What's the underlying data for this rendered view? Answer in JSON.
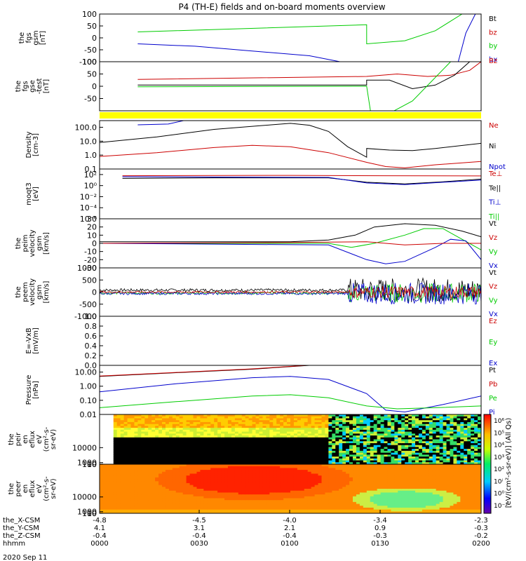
{
  "title": "P4 (TH-E) fields and on-board moments overview",
  "colors": {
    "black": "#000000",
    "red": "#cc0000",
    "green": "#00cc00",
    "blue": "#0000cc",
    "yellow": "#ffff00"
  },
  "chart_data": [
    {
      "type": "line",
      "panel": "fgs gsm",
      "ylabel": [
        "the",
        "fgs",
        "gsm",
        "[nT]"
      ],
      "ylim": [
        -100,
        100
      ],
      "yticks": [
        "100",
        "50",
        "0",
        "-50",
        "-100"
      ],
      "yticks_v": [
        100,
        50,
        0,
        -50,
        -100
      ],
      "legend": [
        {
          "text": "Bt",
          "color": "black"
        },
        {
          "text": "bz",
          "color": "red"
        },
        {
          "text": "by",
          "color": "green"
        },
        {
          "text": "bx",
          "color": "blue"
        }
      ],
      "legend_overlap": "Bz",
      "series": [
        {
          "color": "green",
          "points": [
            [
              0.1,
              25
            ],
            [
              0.7,
              55
            ],
            [
              0.7,
              -25
            ],
            [
              0.8,
              -12
            ],
            [
              0.88,
              30
            ],
            [
              0.95,
              100
            ]
          ]
        },
        {
          "color": "blue",
          "points": [
            [
              0.1,
              -25
            ],
            [
              0.25,
              -35
            ],
            [
              0.4,
              -55
            ],
            [
              0.55,
              -75
            ],
            [
              0.63,
              -100
            ]
          ]
        },
        {
          "color": "blue",
          "points": [
            [
              0.94,
              -100
            ],
            [
              0.96,
              20
            ],
            [
              0.985,
              100
            ]
          ]
        }
      ]
    },
    {
      "type": "line",
      "panel": "fgs gse",
      "ylabel": [
        "the",
        "fgs",
        "gse",
        "-test",
        "[nT]"
      ],
      "ylim": [
        -100,
        100
      ],
      "yticks": [
        "100",
        "50",
        "0",
        "-50"
      ],
      "yticks_v": [
        100,
        50,
        0,
        -50
      ],
      "series": [
        {
          "color": "red",
          "points": [
            [
              0.1,
              28
            ],
            [
              0.7,
              40
            ],
            [
              0.78,
              50
            ],
            [
              0.86,
              40
            ],
            [
              0.92,
              45
            ],
            [
              0.97,
              65
            ],
            [
              1.0,
              100
            ]
          ]
        },
        {
          "color": "black",
          "points": [
            [
              0.1,
              5
            ],
            [
              0.7,
              5
            ],
            [
              0.7,
              25
            ],
            [
              0.76,
              25
            ],
            [
              0.82,
              -10
            ],
            [
              0.88,
              5
            ],
            [
              0.93,
              45
            ],
            [
              0.97,
              100
            ]
          ]
        },
        {
          "color": "green",
          "points": [
            [
              0.1,
              -2
            ],
            [
              0.7,
              0
            ],
            [
              0.71,
              -100
            ],
            [
              0.76,
              -110
            ],
            [
              0.82,
              -60
            ],
            [
              0.87,
              20
            ],
            [
              0.92,
              100
            ]
          ]
        }
      ]
    },
    {
      "type": "line",
      "panel": "density",
      "ylabel": [
        "Density",
        "[cm-3]"
      ],
      "ylim": [
        0.1,
        300
      ],
      "log": true,
      "yticks": [
        "100.0",
        "10.0",
        "1.0",
        "0.1"
      ],
      "yticks_v": [
        100,
        10,
        1,
        0.1
      ],
      "legend": [
        {
          "text": "Ne",
          "color": "red"
        },
        {
          "text": "Ni",
          "color": "black"
        },
        {
          "text": "Npot",
          "color": "blue"
        }
      ],
      "series": [
        {
          "color": "black",
          "points": [
            [
              0.0,
              8
            ],
            [
              0.15,
              20
            ],
            [
              0.3,
              70
            ],
            [
              0.45,
              150
            ],
            [
              0.5,
              190
            ],
            [
              0.55,
              140
            ],
            [
              0.6,
              50
            ],
            [
              0.65,
              4
            ],
            [
              0.7,
              0.7
            ],
            [
              0.7,
              3
            ],
            [
              0.76,
              2.3
            ],
            [
              0.82,
              2.1
            ],
            [
              0.88,
              3
            ],
            [
              1.0,
              7
            ]
          ]
        },
        {
          "color": "red",
          "points": [
            [
              0.0,
              0.8
            ],
            [
              0.15,
              1.5
            ],
            [
              0.3,
              3.5
            ],
            [
              0.4,
              5
            ],
            [
              0.5,
              4
            ],
            [
              0.6,
              1.5
            ],
            [
              0.7,
              0.3
            ],
            [
              0.75,
              0.15
            ],
            [
              0.8,
              0.12
            ],
            [
              0.88,
              0.2
            ],
            [
              1.0,
              0.35
            ]
          ]
        },
        {
          "color": "blue",
          "points": [
            [
              0.1,
              150
            ],
            [
              0.18,
              170
            ],
            [
              0.22,
              300
            ]
          ]
        }
      ]
    },
    {
      "type": "line",
      "panel": "temperature",
      "ylabel": [
        "moqt3",
        "[eV]"
      ],
      "ylim": [
        1e-06,
        1000
      ],
      "log": true,
      "yticks": [
        "10²",
        "10⁰",
        "10⁻²",
        "10⁻⁴",
        "10⁻⁶"
      ],
      "yticks_v": [
        100,
        1,
        0.01,
        0.0001,
        1e-06
      ],
      "legend": [
        {
          "text": "Te⊥",
          "color": "red"
        },
        {
          "text": "Te||",
          "color": "black"
        },
        {
          "text": "Ti⊥",
          "color": "blue"
        },
        {
          "text": "Ti||",
          "color": "green"
        }
      ],
      "series": [
        {
          "color": "black",
          "points": [
            [
              0.06,
              20
            ],
            [
              0.3,
              25
            ],
            [
              0.6,
              25
            ],
            [
              0.7,
              4
            ],
            [
              0.8,
              2
            ],
            [
              0.9,
              5
            ],
            [
              1.0,
              15
            ]
          ]
        },
        {
          "color": "blue",
          "points": [
            [
              0.06,
              40
            ],
            [
              0.3,
              35
            ],
            [
              0.6,
              30
            ],
            [
              0.7,
              3
            ],
            [
              0.8,
              1.5
            ],
            [
              0.9,
              4
            ],
            [
              1.0,
              10
            ]
          ]
        },
        {
          "color": "red",
          "points": [
            [
              0.06,
              60
            ],
            [
              0.5,
              70
            ],
            [
              0.75,
              60
            ],
            [
              1.0,
              55
            ]
          ]
        }
      ]
    },
    {
      "type": "line",
      "panel": "peim velocity",
      "ylabel": [
        "the",
        "peim",
        "velocity",
        "gsm",
        "[km/s]"
      ],
      "ylim": [
        -30,
        30
      ],
      "yticks": [
        "30",
        "20",
        "10",
        "0",
        "-10",
        "-20",
        "-30"
      ],
      "yticks_v": [
        30,
        20,
        10,
        0,
        -10,
        -20,
        -30
      ],
      "legend": [
        {
          "text": "Vt",
          "color": "black"
        },
        {
          "text": "Vz",
          "color": "red"
        },
        {
          "text": "Vy",
          "color": "green"
        },
        {
          "text": "Vx",
          "color": "blue"
        }
      ],
      "series": [
        {
          "color": "black",
          "points": [
            [
              0.0,
              2
            ],
            [
              0.5,
              2
            ],
            [
              0.6,
              4
            ],
            [
              0.67,
              10
            ],
            [
              0.72,
              20
            ],
            [
              0.8,
              24
            ],
            [
              0.88,
              22
            ],
            [
              0.95,
              15
            ],
            [
              1.0,
              8
            ]
          ]
        },
        {
          "color": "green",
          "points": [
            [
              0.0,
              0
            ],
            [
              0.6,
              0
            ],
            [
              0.66,
              -5
            ],
            [
              0.72,
              0
            ],
            [
              0.8,
              10
            ],
            [
              0.85,
              18
            ],
            [
              0.9,
              18
            ],
            [
              0.95,
              5
            ],
            [
              1.0,
              -8
            ]
          ]
        },
        {
          "color": "blue",
          "points": [
            [
              0.0,
              0
            ],
            [
              0.6,
              -2
            ],
            [
              0.7,
              -20
            ],
            [
              0.75,
              -25
            ],
            [
              0.8,
              -22
            ],
            [
              0.88,
              -5
            ],
            [
              0.92,
              5
            ],
            [
              0.96,
              3
            ],
            [
              1.0,
              -20
            ]
          ]
        },
        {
          "color": "red",
          "points": [
            [
              0.0,
              0
            ],
            [
              0.5,
              1
            ],
            [
              0.7,
              2
            ],
            [
              0.8,
              -2
            ],
            [
              0.9,
              0
            ],
            [
              1.0,
              0
            ]
          ]
        }
      ]
    },
    {
      "type": "line",
      "panel": "peem velocity",
      "ylabel": [
        "the",
        "peem",
        "velocity",
        "gsm",
        "[km/s]"
      ],
      "ylim": [
        -1000,
        1000
      ],
      "yticks": [
        "1000",
        "500",
        "0",
        "-500",
        "-1000"
      ],
      "yticks_v": [
        1000,
        500,
        0,
        -500,
        -1000
      ],
      "legend": [
        {
          "text": "Vt",
          "color": "black"
        },
        {
          "text": "Vz",
          "color": "red"
        },
        {
          "text": "Vy",
          "color": "green"
        },
        {
          "text": "Vx",
          "color": "blue"
        }
      ],
      "noise": [
        {
          "color": "black",
          "base": 80,
          "amp": 60,
          "amp2": 500
        },
        {
          "color": "green",
          "base": -40,
          "amp": 50,
          "amp2": 400
        },
        {
          "color": "blue",
          "base": -60,
          "amp": 50,
          "amp2": 450
        },
        {
          "color": "red",
          "base": 0,
          "amp": 40,
          "amp2": 250
        }
      ]
    },
    {
      "type": "line",
      "panel": "E field",
      "ylabel": [
        "E=-VxB",
        "[mV/m]"
      ],
      "ylim": [
        0,
        1
      ],
      "yticks": [
        "1.0",
        "0.8",
        "0.6",
        "0.4",
        "0.2",
        "0.0"
      ],
      "yticks_v": [
        1,
        0.8,
        0.6,
        0.4,
        0.2,
        0
      ],
      "legend": [
        {
          "text": "Ez",
          "color": "red"
        },
        {
          "text": "Ey",
          "color": "green"
        },
        {
          "text": "Ex",
          "color": "blue"
        }
      ],
      "series": []
    },
    {
      "type": "line",
      "panel": "pressure",
      "ylabel": [
        "Pressure",
        "[nPa]"
      ],
      "ylim": [
        0.01,
        30
      ],
      "log": true,
      "yticks": [
        "10.00",
        "1.00",
        "0.10",
        "0.01"
      ],
      "yticks_v": [
        10,
        1,
        0.1,
        0.01
      ],
      "legend": [
        {
          "text": "Pt",
          "color": "black"
        },
        {
          "text": "Pb",
          "color": "red"
        },
        {
          "text": "Pe",
          "color": "green"
        },
        {
          "text": "Pi",
          "color": "blue"
        }
      ],
      "series": [
        {
          "color": "black",
          "points": [
            [
              0.0,
              5
            ],
            [
              0.2,
              9
            ],
            [
              0.4,
              16
            ],
            [
              0.55,
              30
            ]
          ]
        },
        {
          "color": "red",
          "points": [
            [
              0.0,
              5.2
            ],
            [
              0.2,
              9.5
            ],
            [
              0.4,
              17
            ],
            [
              0.55,
              31
            ]
          ]
        },
        {
          "color": "blue",
          "points": [
            [
              0.0,
              0.4
            ],
            [
              0.2,
              1.5
            ],
            [
              0.4,
              4
            ],
            [
              0.5,
              5
            ],
            [
              0.6,
              3
            ],
            [
              0.7,
              0.3
            ],
            [
              0.75,
              0.02
            ],
            [
              0.8,
              0.015
            ],
            [
              0.9,
              0.05
            ],
            [
              1.0,
              0.2
            ]
          ]
        },
        {
          "color": "green",
          "points": [
            [
              0.0,
              0.03
            ],
            [
              0.2,
              0.08
            ],
            [
              0.4,
              0.2
            ],
            [
              0.5,
              0.25
            ],
            [
              0.6,
              0.15
            ],
            [
              0.7,
              0.04
            ],
            [
              0.78,
              0.025
            ],
            [
              0.88,
              0.03
            ],
            [
              1.0,
              0.04
            ]
          ]
        }
      ]
    },
    {
      "type": "heatmap",
      "panel": "peir",
      "ylabel": [
        "the",
        "peir",
        "en",
        "eflux",
        "eV",
        "(cm²-s-",
        "sr-eV)"
      ],
      "yticks": [
        "10000",
        "1000",
        "100",
        "10"
      ],
      "yticks_v": [
        10000,
        1000,
        100,
        10
      ],
      "ylim": [
        5,
        30000
      ]
    },
    {
      "type": "heatmap",
      "panel": "peer",
      "ylabel": [
        "the",
        "peer",
        "en",
        "eflux",
        "eV",
        "(cm²-s-",
        "sr-eV)"
      ],
      "yticks": [
        "10000",
        "1000",
        "100",
        "10"
      ],
      "yticks_v": [
        10000,
        1000,
        100,
        10
      ],
      "ylim": [
        5,
        30000
      ]
    }
  ],
  "colorbar": {
    "label": "[eV/(cm²-s-sr-eV)] (All Qs)",
    "ticks": [
      "10⁶",
      "10⁵",
      "10⁴",
      "10³",
      "10²",
      "10ⁱ",
      "10⁰",
      "10⁻¹"
    ]
  },
  "xaxis": {
    "rows": [
      {
        "label": "the_X-CSM",
        "values": [
          "-4.8",
          "-4.5",
          "-4.0",
          "-3.4",
          "-2.3"
        ]
      },
      {
        "label": "the_Y-CSM",
        "values": [
          "4.1",
          "3.1",
          "2.1",
          "0.9",
          "-0.3"
        ]
      },
      {
        "label": "the_Z-CSM",
        "values": [
          "-0.4",
          "-0.4",
          "-0.4",
          "-0.3",
          "-0.2"
        ]
      },
      {
        "label": "hhmm",
        "values": [
          "0000",
          "0030",
          "0100",
          "0130",
          "0200"
        ]
      }
    ],
    "date": "2020 Sep 11"
  }
}
